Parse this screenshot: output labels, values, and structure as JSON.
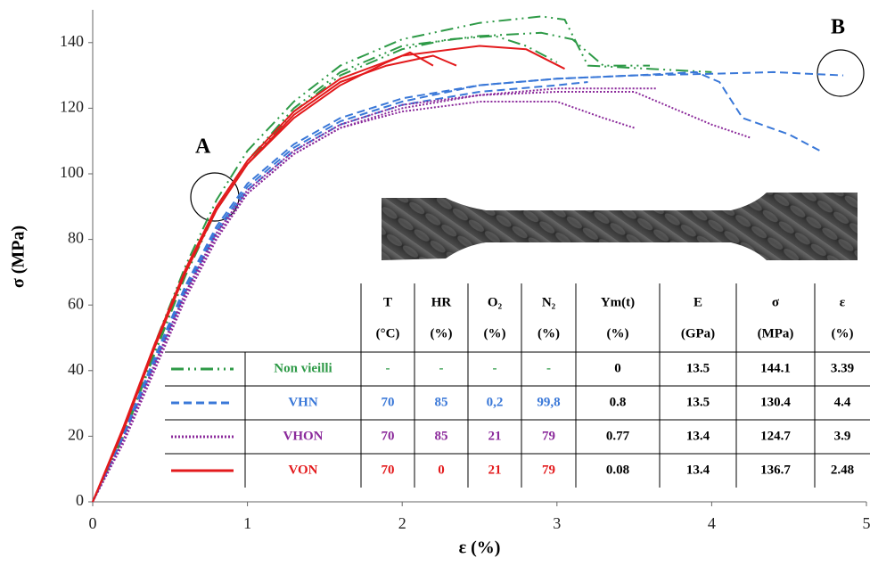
{
  "chart_data": {
    "type": "line",
    "x_label": "ε (%)",
    "y_label": "σ (MPa)",
    "xlim": [
      0,
      5
    ],
    "xticks": [
      0,
      1,
      2,
      3,
      4,
      5
    ],
    "ylim": [
      0,
      150
    ],
    "yticks": [
      0,
      20,
      40,
      60,
      80,
      100,
      120,
      140
    ],
    "annotations": [
      "A",
      "B"
    ],
    "series": [
      {
        "name": "Non vieilli",
        "color": "#2e9a47",
        "dash": "dashdot",
        "curves": [
          {
            "x": [
              0,
              0.2,
              0.4,
              0.6,
              0.8,
              1.0,
              1.3,
              1.6,
              2.0,
              2.5,
              2.9,
              3.05,
              3.2,
              3.6,
              4.0
            ],
            "values": [
              0,
              22,
              48,
              72,
              92,
              107,
              122,
              133,
              141,
              146,
              148,
              147,
              133,
              132,
              131
            ]
          },
          {
            "x": [
              0,
              0.2,
              0.4,
              0.6,
              0.8,
              1.0,
              1.3,
              1.6,
              2.0,
              2.5,
              2.9,
              3.1,
              3.3,
              3.6
            ],
            "values": [
              0,
              21,
              46,
              70,
              90,
              104,
              120,
              131,
              139,
              142,
              143,
              141,
              133,
              133
            ]
          },
          {
            "x": [
              0,
              0.2,
              0.4,
              0.6,
              0.8,
              1.0,
              1.3,
              1.6,
              2.0,
              2.3,
              2.6,
              2.8,
              3.0
            ],
            "values": [
              0,
              20,
              45,
              69,
              89,
              103,
              119,
              130,
              138,
              141,
              142,
              139,
              134
            ]
          }
        ]
      },
      {
        "name": "VHN",
        "color": "#3a78d8",
        "dash": "dashed",
        "curves": [
          {
            "x": [
              0,
              0.2,
              0.4,
              0.6,
              0.8,
              1.0,
              1.3,
              1.6,
              2.0,
              2.5,
              3.0,
              3.5,
              4.0,
              4.4,
              4.85
            ],
            "values": [
              0,
              20,
              43,
              65,
              83,
              96,
              108,
              116,
              122,
              127,
              129,
              130,
              130.5,
              131,
              130
            ]
          },
          {
            "x": [
              0,
              0.2,
              0.4,
              0.6,
              0.8,
              1.0,
              1.3,
              1.6,
              2.0,
              2.5,
              3.0,
              3.5,
              3.9,
              4.05,
              4.2,
              4.5,
              4.7
            ],
            "values": [
              0,
              21,
              44,
              66,
              84,
              97,
              109,
              117,
              123,
              127,
              129,
              130,
              131,
              128,
              117,
              112,
              107
            ]
          },
          {
            "x": [
              0,
              0.2,
              0.4,
              0.6,
              0.8,
              1.0,
              1.3,
              1.6,
              2.0,
              2.5,
              3.0,
              3.2
            ],
            "values": [
              0,
              20,
              42,
              64,
              82,
              95,
              107,
              115,
              121,
              125,
              127,
              128
            ]
          }
        ]
      },
      {
        "name": "VHON",
        "color": "#8b2a9b",
        "dash": "dotted",
        "curves": [
          {
            "x": [
              0,
              0.2,
              0.4,
              0.6,
              0.8,
              1.0,
              1.3,
              1.6,
              2.0,
              2.5,
              3.0,
              3.5,
              4.0,
              4.25
            ],
            "values": [
              0,
              18,
              40,
              62,
              80,
              94,
              106,
              114,
              120,
              124,
              125,
              125,
              115,
              111
            ]
          },
          {
            "x": [
              0,
              0.2,
              0.4,
              0.6,
              0.8,
              1.0,
              1.3,
              1.6,
              2.0,
              2.5,
              3.0,
              3.3,
              3.5
            ],
            "values": [
              0,
              19,
              41,
              63,
              81,
              94,
              106,
              114,
              119,
              122,
              122,
              117,
              114
            ]
          },
          {
            "x": [
              0,
              0.2,
              0.4,
              0.6,
              0.8,
              1.0,
              1.3,
              1.6,
              2.0,
              2.5,
              3.0,
              3.65
            ],
            "values": [
              0,
              19,
              42,
              64,
              82,
              95,
              107,
              115,
              121,
              124,
              126,
              126
            ]
          }
        ]
      },
      {
        "name": "VON",
        "color": "#e31a1c",
        "dash": "solid",
        "curves": [
          {
            "x": [
              0,
              0.2,
              0.4,
              0.6,
              0.8,
              1.0,
              1.3,
              1.6,
              2.0,
              2.5,
              2.8,
              3.05
            ],
            "values": [
              0,
              23,
              48,
              71,
              90,
              104,
              119,
              129,
              136,
              139,
              138,
              132
            ]
          },
          {
            "x": [
              0,
              0.2,
              0.4,
              0.6,
              0.8,
              1.0,
              1.3,
              1.6,
              1.9,
              2.2,
              2.35
            ],
            "values": [
              0,
              22,
              47,
              70,
              89,
              103,
              118,
              128,
              133,
              136,
              133
            ]
          },
          {
            "x": [
              0,
              0.2,
              0.4,
              0.6,
              0.8,
              1.0,
              1.3,
              1.6,
              1.9,
              2.05,
              2.2
            ],
            "values": [
              0,
              22,
              47,
              70,
              89,
              103,
              117,
              127,
              134,
              137,
              133
            ]
          }
        ]
      }
    ]
  },
  "table": {
    "header": [
      [
        "T",
        "(°C)"
      ],
      [
        "HR",
        "(%)"
      ],
      [
        "O₂",
        "(%)"
      ],
      [
        "N₂",
        "(%)"
      ],
      [
        "Ym(t)",
        "(%)"
      ],
      [
        "E",
        "(GPa)"
      ],
      [
        "σ",
        "(MPa)"
      ],
      [
        "ε",
        "(%)"
      ]
    ],
    "rows": [
      [
        "-",
        "-",
        "-",
        "-",
        "0",
        "13.5",
        "144.1",
        "3.39"
      ],
      [
        "70",
        "85",
        "0,2",
        "99,8",
        "0.8",
        "13.5",
        "130.4",
        "4.4"
      ],
      [
        "70",
        "85",
        "21",
        "79",
        "0.77",
        "13.4",
        "124.7",
        "3.9"
      ],
      [
        "70",
        "0",
        "21",
        "79",
        "0.08",
        "13.4",
        "136.7",
        "2.48"
      ]
    ]
  }
}
